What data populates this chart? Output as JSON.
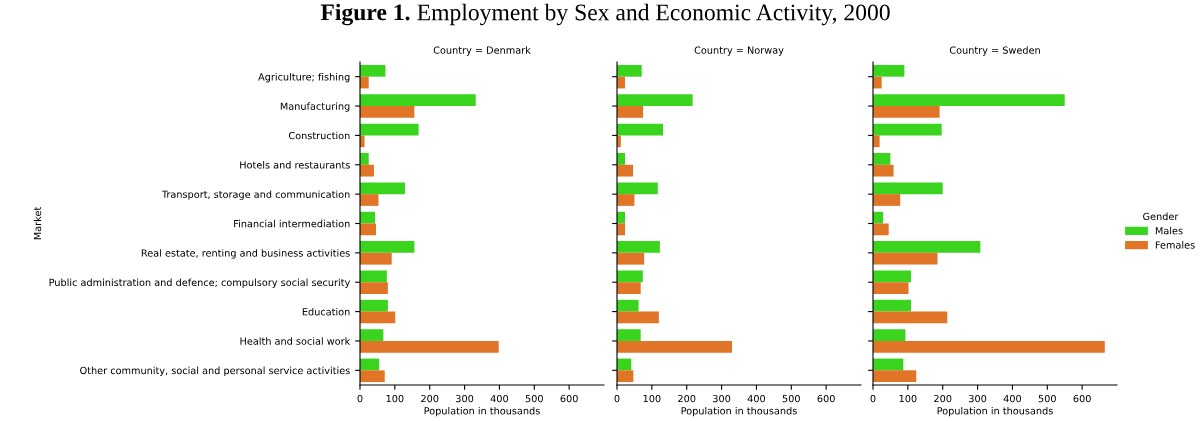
{
  "chart_data": [
    {
      "type": "bar",
      "orientation": "horizontal",
      "title": "Country = Denmark",
      "xlabel": "Population in thousands",
      "ylabel": "Market",
      "legend": "right",
      "legend_title": "Gender",
      "annotations": [
        "Figure 1. Employment by Sex and Economic Activity, 2000"
      ],
      "categories": [
        "Agriculture; fishing",
        "Manufacturing",
        "Construction",
        "Hotels and restaurants",
        "Transport, storage and communication",
        "Financial intermediation",
        "Real estate, renting and business activities",
        "Public administration and defence; compulsory social security",
        "Education",
        "Health and social work",
        "Other community, social and personal service activities"
      ],
      "series": [
        {
          "name": "Males",
          "color": "#3ad41f",
          "values": [
            73,
            332,
            168,
            25,
            129,
            43,
            156,
            77,
            80,
            67,
            55
          ]
        },
        {
          "name": "Females",
          "color": "#e07528",
          "values": [
            25,
            156,
            13,
            40,
            53,
            46,
            91,
            80,
            101,
            398,
            71
          ]
        }
      ],
      "xlim": [
        0,
        700
      ],
      "xticks": [
        0,
        100,
        200,
        300,
        400,
        500,
        600
      ]
    },
    {
      "type": "bar",
      "orientation": "horizontal",
      "title": "Country = Norway",
      "xlabel": "Population in thousands",
      "tick_labels": "x",
      "categories": [
        null,
        null,
        null,
        null,
        null,
        null,
        null,
        null,
        null,
        null,
        null
      ],
      "series": [
        {
          "color": "#3ad41f",
          "values": [
            71,
            217,
            132,
            23,
            117,
            23,
            123,
            74,
            62,
            68,
            41
          ]
        },
        {
          "color": "#e07528",
          "values": [
            23,
            75,
            11,
            46,
            50,
            23,
            78,
            68,
            120,
            330,
            47
          ]
        }
      ],
      "xlim": [
        0,
        700
      ],
      "xticks": [
        0,
        100,
        200,
        300,
        400,
        500,
        600
      ]
    },
    {
      "type": "bar",
      "orientation": "horizontal",
      "title": "Country = Sweden",
      "xlabel": "Population in thousands",
      "tick_labels": "x",
      "categories": [
        null,
        null,
        null,
        null,
        null,
        null,
        null,
        null,
        null,
        null,
        null
      ],
      "series": [
        {
          "color": "#3ad41f",
          "values": [
            90,
            550,
            197,
            50,
            200,
            29,
            308,
            109,
            109,
            93,
            87
          ]
        },
        {
          "color": "#e07528",
          "values": [
            25,
            191,
            19,
            59,
            78,
            45,
            185,
            102,
            213,
            665,
            124
          ]
        }
      ],
      "xlim": [
        0,
        700
      ],
      "xticks": [
        0,
        100,
        200,
        300,
        400,
        500,
        600
      ]
    }
  ]
}
